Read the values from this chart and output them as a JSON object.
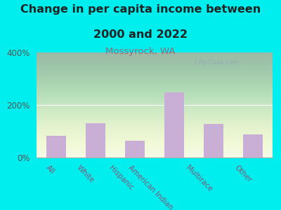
{
  "title_line1": "Change in per capita income between",
  "title_line2": "2000 and 2022",
  "subtitle": "Mossyrock, WA",
  "categories": [
    "All",
    "White",
    "Hispanic",
    "American Indian",
    "Multirace",
    "Other"
  ],
  "values": [
    82,
    130,
    65,
    248,
    128,
    88
  ],
  "bar_color": "#c9aed6",
  "title_fontsize": 11.5,
  "subtitle_fontsize": 9.5,
  "subtitle_color": "#996677",
  "title_color": "#222222",
  "background_outer": "#00eeee",
  "ylim": [
    0,
    400
  ],
  "yticks": [
    0,
    200,
    400
  ],
  "ytick_labels": [
    "0%",
    "200%",
    "400%"
  ],
  "watermark": "City-Data.com",
  "xlabel_rotation": -45,
  "tick_color": "#885577",
  "ytick_color": "#555555"
}
